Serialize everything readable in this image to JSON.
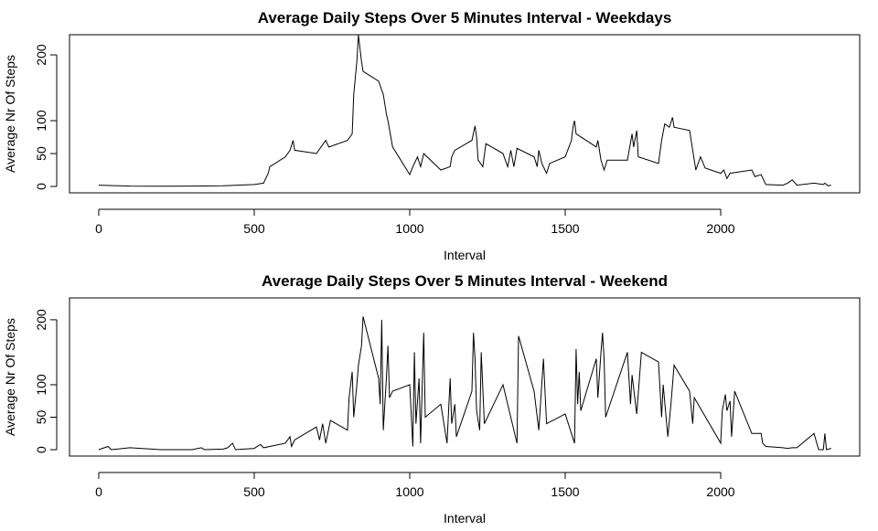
{
  "chart_data": [
    {
      "type": "line",
      "title": "Average Daily Steps Over 5 Minutes Interval - Weekdays",
      "xlabel": "Interval",
      "ylabel": "Average Nr Of Steps",
      "x": [
        0,
        100,
        200,
        300,
        400,
        500,
        530,
        545,
        550,
        600,
        615,
        625,
        630,
        700,
        715,
        730,
        740,
        800,
        815,
        820,
        830,
        835,
        845,
        850,
        900,
        915,
        925,
        930,
        945,
        1000,
        1010,
        1025,
        1035,
        1045,
        1100,
        1130,
        1135,
        1145,
        1200,
        1210,
        1215,
        1220,
        1235,
        1245,
        1300,
        1315,
        1325,
        1335,
        1345,
        1400,
        1410,
        1415,
        1425,
        1440,
        1450,
        1500,
        1520,
        1525,
        1530,
        1535,
        1600,
        1605,
        1615,
        1625,
        1635,
        1700,
        1715,
        1720,
        1730,
        1735,
        1800,
        1810,
        1820,
        1835,
        1845,
        1850,
        1900,
        1915,
        1920,
        1935,
        1950,
        2000,
        2010,
        2020,
        2030,
        2100,
        2110,
        2130,
        2145,
        2200,
        2215,
        2230,
        2245,
        2300,
        2330,
        2335,
        2345,
        2355
      ],
      "series": [
        {
          "color": "#000000",
          "values": [
            2,
            0.5,
            0.3,
            0.5,
            1,
            3,
            5,
            20,
            30,
            45,
            55,
            70,
            55,
            50,
            60,
            70,
            60,
            70,
            80,
            140,
            190,
            230,
            190,
            175,
            160,
            140,
            110,
            100,
            60,
            18,
            30,
            45,
            30,
            50,
            25,
            30,
            45,
            55,
            70,
            92,
            75,
            40,
            30,
            65,
            50,
            30,
            55,
            30,
            58,
            45,
            30,
            55,
            35,
            20,
            35,
            45,
            70,
            90,
            100,
            80,
            60,
            70,
            40,
            25,
            40,
            40,
            80,
            60,
            85,
            45,
            35,
            70,
            95,
            90,
            105,
            90,
            85,
            40,
            25,
            45,
            28,
            20,
            25,
            12,
            20,
            25,
            15,
            18,
            3,
            2,
            5,
            10,
            2,
            5,
            3,
            5,
            1,
            2
          ]
        }
      ],
      "xlim": [
        -94,
        2447
      ],
      "ylim": [
        -9.7,
        230.6
      ],
      "xticks": [
        0,
        500,
        1000,
        1500,
        2000
      ],
      "yticks": [
        0,
        50,
        100,
        200
      ]
    },
    {
      "type": "line",
      "title": "Average Daily Steps Over 5 Minutes Interval - Weekend",
      "xlabel": "Interval",
      "ylabel": "Average Nr Of Steps",
      "x": [
        0,
        30,
        40,
        100,
        200,
        300,
        330,
        340,
        400,
        415,
        430,
        440,
        500,
        520,
        530,
        600,
        615,
        620,
        630,
        700,
        710,
        720,
        730,
        745,
        800,
        805,
        815,
        820,
        830,
        835,
        845,
        850,
        900,
        905,
        910,
        915,
        925,
        930,
        935,
        945,
        1000,
        1010,
        1015,
        1020,
        1030,
        1035,
        1045,
        1050,
        1100,
        1120,
        1130,
        1135,
        1145,
        1150,
        1200,
        1205,
        1210,
        1215,
        1225,
        1230,
        1240,
        1300,
        1330,
        1345,
        1350,
        1400,
        1415,
        1430,
        1440,
        1500,
        1530,
        1535,
        1540,
        1545,
        1550,
        1600,
        1605,
        1615,
        1620,
        1625,
        1630,
        1700,
        1710,
        1715,
        1730,
        1745,
        1800,
        1810,
        1815,
        1830,
        1840,
        1850,
        1900,
        1910,
        1915,
        2000,
        2005,
        2015,
        2020,
        2030,
        2035,
        2045,
        2100,
        2130,
        2135,
        2145,
        2200,
        2215,
        2230,
        2245,
        2300,
        2315,
        2330,
        2335,
        2340,
        2355
      ],
      "series": [
        {
          "color": "#000000",
          "values": [
            0,
            5,
            0,
            3,
            0,
            0,
            3,
            0,
            1,
            3,
            10,
            0,
            2,
            8,
            3,
            10,
            20,
            5,
            15,
            35,
            15,
            40,
            10,
            45,
            30,
            80,
            120,
            50,
            100,
            130,
            160,
            205,
            110,
            70,
            200,
            30,
            110,
            160,
            80,
            90,
            100,
            5,
            150,
            40,
            110,
            10,
            180,
            50,
            70,
            10,
            110,
            40,
            70,
            20,
            90,
            180,
            140,
            60,
            30,
            150,
            40,
            100,
            40,
            10,
            175,
            90,
            30,
            140,
            40,
            55,
            10,
            155,
            70,
            120,
            60,
            140,
            80,
            150,
            180,
            140,
            50,
            150,
            70,
            115,
            55,
            150,
            135,
            50,
            100,
            20,
            70,
            130,
            90,
            40,
            80,
            10,
            60,
            85,
            60,
            75,
            20,
            90,
            25,
            25,
            10,
            5,
            3,
            2,
            3,
            3,
            25,
            0,
            0,
            25,
            0,
            2
          ]
        }
      ],
      "xlim": [
        -94,
        2447
      ],
      "ylim": [
        -9.8,
        233.6
      ],
      "xticks": [
        0,
        500,
        1000,
        1500,
        2000
      ],
      "yticks": [
        0,
        50,
        100,
        200
      ]
    }
  ]
}
